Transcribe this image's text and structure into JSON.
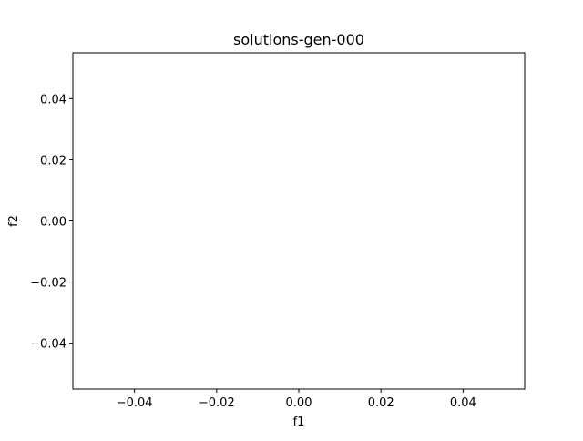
{
  "chart_data": {
    "type": "scatter",
    "title": "solutions-gen-000",
    "xlabel": "f1",
    "ylabel": "f2",
    "xlim": [
      -0.055,
      0.055
    ],
    "ylim": [
      -0.055,
      0.055
    ],
    "xticks": [
      -0.04,
      -0.02,
      0.0,
      0.02,
      0.04
    ],
    "xtick_labels": [
      "−0.04",
      "−0.02",
      "0.00",
      "0.02",
      "0.04"
    ],
    "yticks": [
      -0.04,
      -0.02,
      0.0,
      0.02,
      0.04
    ],
    "ytick_labels": [
      "−0.04",
      "−0.02",
      "0.00",
      "0.02",
      "0.04"
    ],
    "grid": false,
    "series": [
      {
        "x": [],
        "y": []
      }
    ]
  }
}
